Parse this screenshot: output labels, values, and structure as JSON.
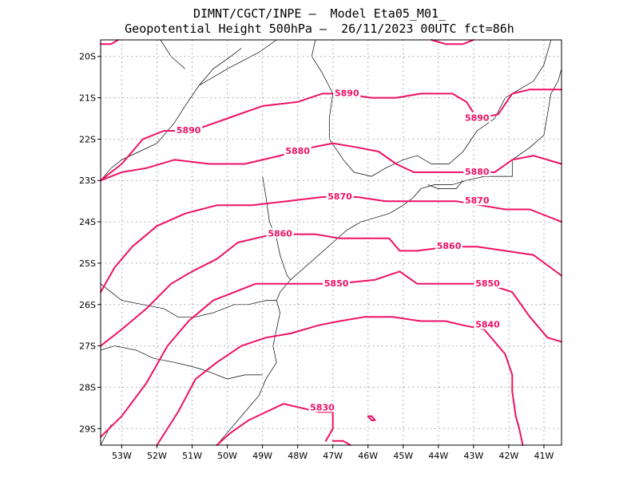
{
  "header": {
    "line1": "DIMNT/CGCT/INPE –  Model Eta05_M01_",
    "line2": "Geopotential Height 500hPa –  26/11/2023 00UTC fct=86h"
  },
  "map": {
    "lon_range": [
      -53.6,
      -40.5
    ],
    "lat_range": [
      -29.4,
      -19.6
    ],
    "grid": true,
    "contour_color": "#ee1166",
    "coast_color": "#000000",
    "lat_ticks": [
      {
        "v": -20,
        "label": "20S"
      },
      {
        "v": -21,
        "label": "21S"
      },
      {
        "v": -22,
        "label": "22S"
      },
      {
        "v": -23,
        "label": "23S"
      },
      {
        "v": -24,
        "label": "24S"
      },
      {
        "v": -25,
        "label": "25S"
      },
      {
        "v": -26,
        "label": "26S"
      },
      {
        "v": -27,
        "label": "27S"
      },
      {
        "v": -28,
        "label": "28S"
      },
      {
        "v": -29,
        "label": "29S"
      }
    ],
    "lon_ticks": [
      {
        "v": -53,
        "label": "53W"
      },
      {
        "v": -52,
        "label": "52W"
      },
      {
        "v": -51,
        "label": "51W"
      },
      {
        "v": -50,
        "label": "50W"
      },
      {
        "v": -49,
        "label": "49W"
      },
      {
        "v": -48,
        "label": "48W"
      },
      {
        "v": -47,
        "label": "47W"
      },
      {
        "v": -46,
        "label": "46W"
      },
      {
        "v": -45,
        "label": "45W"
      },
      {
        "v": -44,
        "label": "44W"
      },
      {
        "v": -43,
        "label": "43W"
      },
      {
        "v": -42,
        "label": "42W"
      },
      {
        "v": -41,
        "label": "41W"
      }
    ],
    "contours": [
      {
        "level": "5890",
        "labels": [
          [
            -51.1,
            -21.8
          ],
          [
            -46.6,
            -20.9
          ],
          [
            -42.9,
            -21.5
          ]
        ],
        "pts": [
          [
            -53.6,
            -23.0
          ],
          [
            -53.0,
            -22.6
          ],
          [
            -52.4,
            -22.0
          ],
          [
            -51.8,
            -21.8
          ],
          [
            -51.0,
            -21.8
          ],
          [
            -50.0,
            -21.5
          ],
          [
            -49.0,
            -21.2
          ],
          [
            -48.0,
            -21.1
          ],
          [
            -47.3,
            -20.9
          ],
          [
            -46.7,
            -20.9
          ],
          [
            -45.9,
            -21.0
          ],
          [
            -45.2,
            -21.0
          ],
          [
            -44.5,
            -20.9
          ],
          [
            -43.6,
            -20.9
          ],
          [
            -43.2,
            -21.1
          ],
          [
            -42.9,
            -21.5
          ],
          [
            -42.3,
            -21.4
          ],
          [
            -41.9,
            -20.9
          ],
          [
            -41.4,
            -20.8
          ],
          [
            -40.5,
            -20.8
          ]
        ]
      },
      {
        "level": "5890",
        "labels": [],
        "pts": [
          [
            -44.2,
            -19.6
          ],
          [
            -43.8,
            -19.7
          ],
          [
            -43.3,
            -19.7
          ],
          [
            -43.0,
            -19.6
          ]
        ]
      },
      {
        "level": "5880",
        "labels": [
          [
            -48.0,
            -22.3
          ],
          [
            -42.9,
            -22.8
          ]
        ],
        "pts": [
          [
            -53.6,
            -23.0
          ],
          [
            -53.0,
            -22.8
          ],
          [
            -52.3,
            -22.7
          ],
          [
            -51.5,
            -22.5
          ],
          [
            -50.5,
            -22.6
          ],
          [
            -49.5,
            -22.6
          ],
          [
            -48.5,
            -22.4
          ],
          [
            -47.6,
            -22.2
          ],
          [
            -47.0,
            -22.1
          ],
          [
            -46.3,
            -22.2
          ],
          [
            -45.7,
            -22.3
          ],
          [
            -45.2,
            -22.6
          ],
          [
            -44.7,
            -22.8
          ],
          [
            -44.0,
            -22.8
          ],
          [
            -43.0,
            -22.8
          ],
          [
            -42.4,
            -22.8
          ],
          [
            -41.9,
            -22.5
          ],
          [
            -41.3,
            -22.4
          ],
          [
            -40.5,
            -22.6
          ]
        ]
      },
      {
        "level": "5870",
        "labels": [
          [
            -46.8,
            -23.4
          ],
          [
            -42.9,
            -23.5
          ]
        ],
        "pts": [
          [
            -53.6,
            -25.7
          ],
          [
            -53.2,
            -25.1
          ],
          [
            -52.7,
            -24.6
          ],
          [
            -52.0,
            -24.1
          ],
          [
            -51.2,
            -23.8
          ],
          [
            -50.3,
            -23.6
          ],
          [
            -49.3,
            -23.6
          ],
          [
            -48.3,
            -23.5
          ],
          [
            -47.3,
            -23.4
          ],
          [
            -46.3,
            -23.4
          ],
          [
            -45.5,
            -23.5
          ],
          [
            -44.5,
            -23.5
          ],
          [
            -43.5,
            -23.5
          ],
          [
            -42.8,
            -23.6
          ],
          [
            -42.1,
            -23.7
          ],
          [
            -41.4,
            -23.7
          ],
          [
            -40.5,
            -24.0
          ]
        ]
      },
      {
        "level": "5860",
        "labels": [
          [
            -48.5,
            -24.3
          ],
          [
            -43.7,
            -24.6
          ]
        ],
        "pts": [
          [
            -53.6,
            -27.0
          ],
          [
            -53.0,
            -26.6
          ],
          [
            -52.3,
            -26.1
          ],
          [
            -51.6,
            -25.5
          ],
          [
            -51.0,
            -25.2
          ],
          [
            -50.3,
            -24.9
          ],
          [
            -49.7,
            -24.5
          ],
          [
            -49.2,
            -24.4
          ],
          [
            -48.7,
            -24.3
          ],
          [
            -48.1,
            -24.3
          ],
          [
            -47.5,
            -24.3
          ],
          [
            -46.8,
            -24.4
          ],
          [
            -46.0,
            -24.4
          ],
          [
            -45.4,
            -24.4
          ],
          [
            -45.1,
            -24.7
          ],
          [
            -44.6,
            -24.7
          ],
          [
            -43.7,
            -24.6
          ],
          [
            -42.9,
            -24.6
          ],
          [
            -42.1,
            -24.7
          ],
          [
            -41.3,
            -24.8
          ],
          [
            -40.5,
            -25.3
          ]
        ]
      },
      {
        "level": "5850",
        "labels": [
          [
            -46.9,
            -25.5
          ],
          [
            -42.6,
            -25.5
          ]
        ],
        "pts": [
          [
            -53.6,
            -29.2
          ],
          [
            -53.0,
            -28.7
          ],
          [
            -52.3,
            -27.9
          ],
          [
            -51.7,
            -27.0
          ],
          [
            -51.1,
            -26.4
          ],
          [
            -50.4,
            -25.9
          ],
          [
            -49.8,
            -25.7
          ],
          [
            -49.2,
            -25.5
          ],
          [
            -48.5,
            -25.5
          ],
          [
            -47.8,
            -25.5
          ],
          [
            -46.9,
            -25.5
          ],
          [
            -45.8,
            -25.4
          ],
          [
            -45.1,
            -25.2
          ],
          [
            -44.6,
            -25.5
          ],
          [
            -43.7,
            -25.5
          ],
          [
            -42.6,
            -25.5
          ],
          [
            -41.9,
            -25.7
          ],
          [
            -41.4,
            -26.3
          ],
          [
            -40.9,
            -26.8
          ],
          [
            -40.5,
            -26.9
          ]
        ]
      },
      {
        "level": "5840",
        "labels": [
          [
            -42.6,
            -26.5
          ]
        ],
        "pts": [
          [
            -52.0,
            -29.4
          ],
          [
            -51.4,
            -28.6
          ],
          [
            -50.9,
            -27.8
          ],
          [
            -50.3,
            -27.4
          ],
          [
            -49.6,
            -27.0
          ],
          [
            -48.9,
            -26.8
          ],
          [
            -48.2,
            -26.7
          ],
          [
            -47.4,
            -26.5
          ],
          [
            -46.8,
            -26.4
          ],
          [
            -46.1,
            -26.3
          ],
          [
            -45.3,
            -26.3
          ],
          [
            -44.5,
            -26.4
          ],
          [
            -43.8,
            -26.4
          ],
          [
            -43.3,
            -26.5
          ],
          [
            -42.7,
            -26.6
          ],
          [
            -42.4,
            -26.9
          ],
          [
            -42.1,
            -27.2
          ],
          [
            -41.9,
            -27.7
          ],
          [
            -41.9,
            -28.1
          ],
          [
            -41.8,
            -28.7
          ],
          [
            -41.7,
            -29.0
          ],
          [
            -41.6,
            -29.4
          ]
        ]
      },
      {
        "level": "5830",
        "labels": [
          [
            -47.3,
            -28.5
          ]
        ],
        "pts": [
          [
            -50.3,
            -29.4
          ],
          [
            -49.9,
            -29.1
          ],
          [
            -49.4,
            -28.8
          ],
          [
            -48.9,
            -28.6
          ],
          [
            -48.4,
            -28.4
          ],
          [
            -47.9,
            -28.5
          ],
          [
            -47.4,
            -28.6
          ],
          [
            -47.0,
            -28.6
          ],
          [
            -47.0,
            -29.0
          ],
          [
            -47.2,
            -29.3
          ]
        ]
      },
      {
        "level": "",
        "labels": [],
        "pts": [
          [
            -47.0,
            -29.3
          ],
          [
            -46.7,
            -29.3
          ],
          [
            -46.5,
            -29.4
          ]
        ]
      },
      {
        "level": "",
        "labels": [],
        "pts": [
          [
            -46.0,
            -28.7
          ],
          [
            -45.9,
            -28.8
          ],
          [
            -45.8,
            -28.8
          ],
          [
            -45.9,
            -28.7
          ],
          [
            -46.0,
            -28.7
          ]
        ]
      },
      {
        "level": "",
        "labels": [],
        "pts": [
          [
            -53.6,
            -19.7
          ],
          [
            -53.3,
            -19.7
          ],
          [
            -53.1,
            -19.6
          ]
        ]
      }
    ],
    "coastlines": [
      {
        "pts": [
          [
            -53.6,
            -29.4
          ],
          [
            -53.3,
            -28.9
          ]
        ]
      },
      {
        "pts": [
          [
            -50.3,
            -29.4
          ],
          [
            -49.9,
            -29.0
          ],
          [
            -49.5,
            -28.6
          ],
          [
            -49.1,
            -28.2
          ],
          [
            -48.9,
            -27.8
          ],
          [
            -48.6,
            -27.4
          ],
          [
            -48.7,
            -27.0
          ],
          [
            -48.6,
            -26.6
          ],
          [
            -48.5,
            -26.2
          ],
          [
            -48.6,
            -25.9
          ],
          [
            -48.5,
            -25.7
          ],
          [
            -48.2,
            -25.4
          ],
          [
            -47.8,
            -25.1
          ],
          [
            -47.4,
            -24.8
          ],
          [
            -47.0,
            -24.5
          ],
          [
            -46.6,
            -24.2
          ],
          [
            -46.2,
            -24.0
          ],
          [
            -45.8,
            -23.9
          ],
          [
            -45.4,
            -23.8
          ],
          [
            -45.0,
            -23.6
          ],
          [
            -44.7,
            -23.4
          ],
          [
            -44.5,
            -23.2
          ],
          [
            -44.1,
            -23.1
          ],
          [
            -43.6,
            -23.1
          ],
          [
            -43.2,
            -23.0
          ],
          [
            -42.7,
            -22.9
          ],
          [
            -42.2,
            -22.9
          ],
          [
            -41.9,
            -22.9
          ],
          [
            -41.9,
            -22.5
          ],
          [
            -41.4,
            -22.2
          ],
          [
            -41.0,
            -21.9
          ],
          [
            -40.9,
            -21.4
          ],
          [
            -40.8,
            -20.9
          ],
          [
            -40.6,
            -20.6
          ],
          [
            -40.5,
            -20.3
          ]
        ]
      },
      {
        "pts": [
          [
            -53.6,
            -23.0
          ],
          [
            -53.3,
            -22.7
          ],
          [
            -53.0,
            -22.5
          ],
          [
            -52.5,
            -22.3
          ],
          [
            -52.0,
            -22.1
          ],
          [
            -51.5,
            -21.6
          ],
          [
            -51.2,
            -21.2
          ],
          [
            -50.8,
            -20.7
          ],
          [
            -50.4,
            -20.3
          ],
          [
            -49.9,
            -20.0
          ],
          [
            -49.6,
            -19.8
          ]
        ]
      },
      {
        "pts": [
          [
            -53.6,
            -25.5
          ],
          [
            -53.3,
            -25.7
          ],
          [
            -53.0,
            -25.9
          ],
          [
            -52.4,
            -26.0
          ],
          [
            -51.8,
            -26.1
          ],
          [
            -51.4,
            -26.3
          ],
          [
            -50.9,
            -26.3
          ],
          [
            -50.4,
            -26.2
          ],
          [
            -49.8,
            -26.0
          ],
          [
            -49.4,
            -26.0
          ],
          [
            -48.9,
            -25.9
          ],
          [
            -48.6,
            -25.9
          ]
        ]
      },
      {
        "pts": [
          [
            -53.6,
            -27.1
          ],
          [
            -53.2,
            -27.0
          ],
          [
            -52.6,
            -27.1
          ],
          [
            -52.1,
            -27.3
          ],
          [
            -51.5,
            -27.4
          ],
          [
            -51.0,
            -27.5
          ],
          [
            -50.6,
            -27.6
          ],
          [
            -50.0,
            -27.8
          ],
          [
            -49.5,
            -27.7
          ],
          [
            -49.0,
            -27.7
          ]
        ]
      },
      {
        "pts": [
          [
            -49.0,
            -22.9
          ],
          [
            -48.9,
            -23.4
          ],
          [
            -48.8,
            -24.0
          ],
          [
            -48.6,
            -24.4
          ],
          [
            -48.5,
            -24.8
          ],
          [
            -48.3,
            -25.3
          ],
          [
            -48.2,
            -25.4
          ]
        ]
      },
      {
        "pts": [
          [
            -47.5,
            -19.6
          ],
          [
            -47.6,
            -20.0
          ],
          [
            -47.3,
            -20.4
          ],
          [
            -47.0,
            -20.9
          ],
          [
            -47.1,
            -21.5
          ],
          [
            -47.1,
            -22.0
          ],
          [
            -46.7,
            -22.5
          ],
          [
            -46.4,
            -22.8
          ],
          [
            -45.9,
            -22.9
          ],
          [
            -45.5,
            -22.7
          ],
          [
            -45.0,
            -22.5
          ],
          [
            -44.6,
            -22.4
          ],
          [
            -44.2,
            -22.6
          ],
          [
            -43.7,
            -22.6
          ],
          [
            -43.3,
            -22.3
          ],
          [
            -42.9,
            -21.8
          ],
          [
            -42.4,
            -21.5
          ],
          [
            -42.1,
            -21.0
          ],
          [
            -41.7,
            -20.8
          ],
          [
            -41.3,
            -20.6
          ],
          [
            -41.0,
            -20.2
          ],
          [
            -40.8,
            -19.6
          ]
        ]
      },
      {
        "pts": [
          [
            -51.9,
            -19.6
          ],
          [
            -51.6,
            -20.0
          ],
          [
            -51.2,
            -20.3
          ]
        ]
      },
      {
        "pts": [
          [
            -50.8,
            -20.7
          ],
          [
            -50.0,
            -20.3
          ],
          [
            -49.1,
            -19.9
          ],
          [
            -48.6,
            -19.6
          ]
        ]
      },
      {
        "pts": [
          [
            -44.3,
            -23.1
          ],
          [
            -44.0,
            -23.2
          ],
          [
            -43.5,
            -23.2
          ],
          [
            -43.3,
            -23.0
          ]
        ]
      }
    ]
  }
}
